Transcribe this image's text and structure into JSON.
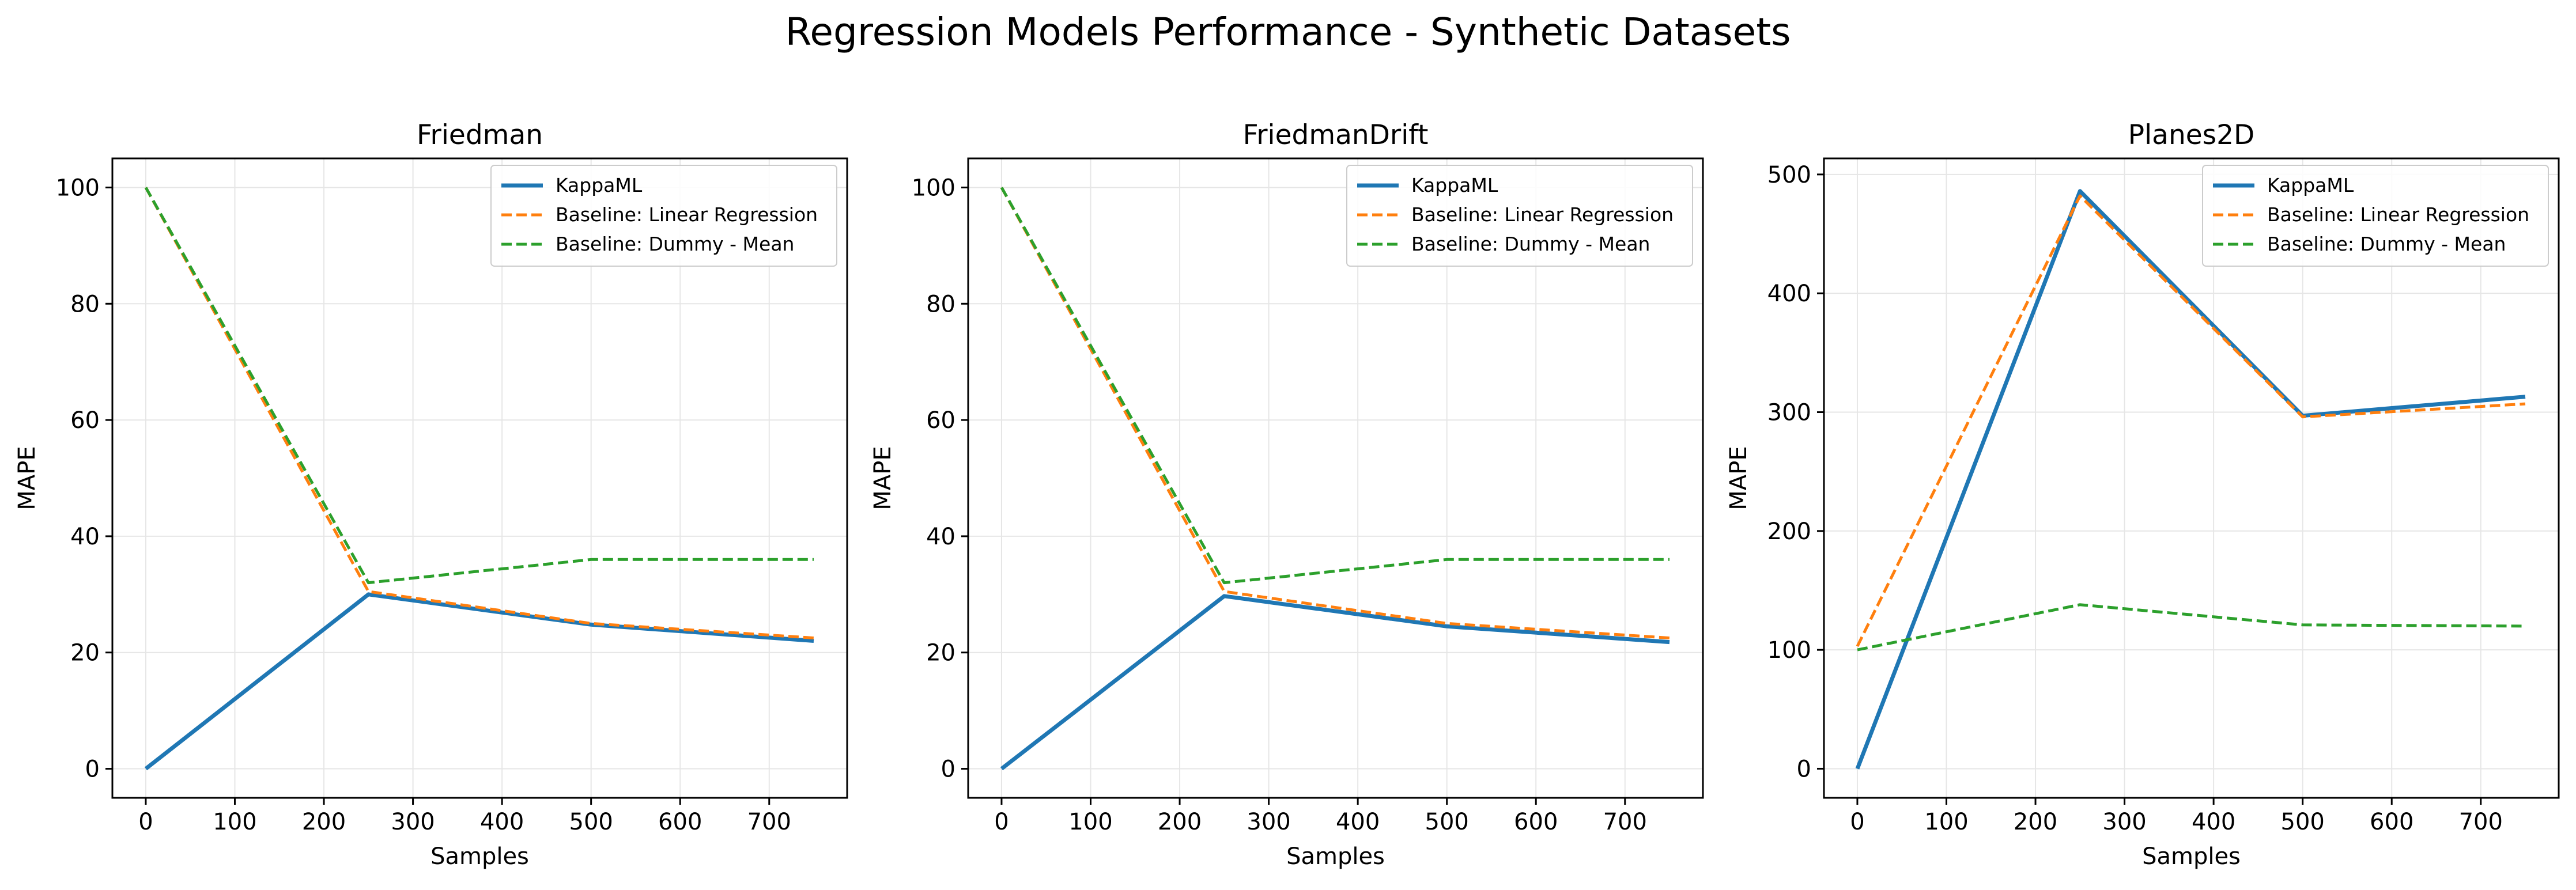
{
  "suptitle": "Regression Models Performance - Synthetic Datasets",
  "colors": {
    "kappaml": "#1f77b4",
    "linear": "#ff7f0e",
    "dummy": "#2ca02c",
    "grid": "#e6e6e6"
  },
  "chart_data": [
    {
      "type": "line",
      "title": "Friedman",
      "xlabel": "Samples",
      "ylabel": "MAPE",
      "xlim": [
        -37.5,
        787.5
      ],
      "ylim": [
        -5,
        105
      ],
      "xticks": [
        0,
        100,
        200,
        300,
        400,
        500,
        600,
        700
      ],
      "yticks": [
        0,
        20,
        40,
        60,
        80,
        100
      ],
      "grid": true,
      "legend_position": "top-right",
      "x": [
        0,
        250,
        500,
        750
      ],
      "series": [
        {
          "name": "KappaML",
          "values": [
            0,
            30,
            24.8,
            22
          ],
          "color": "#1f77b4",
          "style": "solid"
        },
        {
          "name": "Baseline: Linear Regression",
          "values": [
            100,
            30.5,
            25,
            22.5
          ],
          "color": "#ff7f0e",
          "style": "dashed"
        },
        {
          "name": "Baseline: Dummy - Mean",
          "values": [
            100,
            32,
            36,
            36
          ],
          "color": "#2ca02c",
          "style": "dashed"
        }
      ]
    },
    {
      "type": "line",
      "title": "FriedmanDrift",
      "xlabel": "Samples",
      "ylabel": "MAPE",
      "xlim": [
        -37.5,
        787.5
      ],
      "ylim": [
        -5,
        105
      ],
      "xticks": [
        0,
        100,
        200,
        300,
        400,
        500,
        600,
        700
      ],
      "yticks": [
        0,
        20,
        40,
        60,
        80,
        100
      ],
      "grid": true,
      "legend_position": "top-right",
      "x": [
        0,
        250,
        500,
        750
      ],
      "series": [
        {
          "name": "KappaML",
          "values": [
            0,
            29.7,
            24.5,
            21.8
          ],
          "color": "#1f77b4",
          "style": "solid"
        },
        {
          "name": "Baseline: Linear Regression",
          "values": [
            100,
            30.5,
            25,
            22.5
          ],
          "color": "#ff7f0e",
          "style": "dashed"
        },
        {
          "name": "Baseline: Dummy - Mean",
          "values": [
            100,
            32,
            36,
            36
          ],
          "color": "#2ca02c",
          "style": "dashed"
        }
      ]
    },
    {
      "type": "line",
      "title": "Planes2D",
      "xlabel": "Samples",
      "ylabel": "MAPE",
      "xlim": [
        -37.5,
        787.5
      ],
      "ylim": [
        -24.5,
        513.5
      ],
      "xticks": [
        0,
        100,
        200,
        300,
        400,
        500,
        600,
        700
      ],
      "yticks": [
        0,
        100,
        200,
        300,
        400,
        500
      ],
      "grid": true,
      "legend_position": "top-right",
      "x": [
        0,
        250,
        500,
        750
      ],
      "series": [
        {
          "name": "KappaML",
          "values": [
            0,
            486,
            297,
            313
          ],
          "color": "#1f77b4",
          "style": "solid"
        },
        {
          "name": "Baseline: Linear Regression",
          "values": [
            103,
            482,
            296,
            307
          ],
          "color": "#ff7f0e",
          "style": "dashed"
        },
        {
          "name": "Baseline: Dummy - Mean",
          "values": [
            100,
            138,
            121,
            120
          ],
          "color": "#2ca02c",
          "style": "dashed"
        }
      ]
    }
  ]
}
